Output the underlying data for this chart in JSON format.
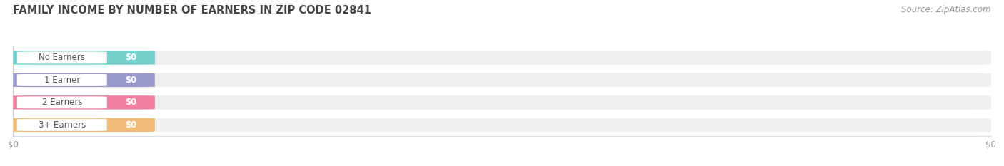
{
  "title": "FAMILY INCOME BY NUMBER OF EARNERS IN ZIP CODE 02841",
  "source": "Source: ZipAtlas.com",
  "categories": [
    "No Earners",
    "1 Earner",
    "2 Earners",
    "3+ Earners"
  ],
  "values": [
    0,
    0,
    0,
    0
  ],
  "bar_colors": [
    "#72cfc9",
    "#9999cc",
    "#f07fa0",
    "#f0bc78"
  ],
  "background_color": "#ffffff",
  "bar_bg_color": "#efefef",
  "title_fontsize": 10.5,
  "source_fontsize": 8.5,
  "label_text_color": "#555555",
  "value_text_color": "#ffffff",
  "tick_label_color": "#999999",
  "bar_height": 0.62,
  "bar_gap": 0.38
}
